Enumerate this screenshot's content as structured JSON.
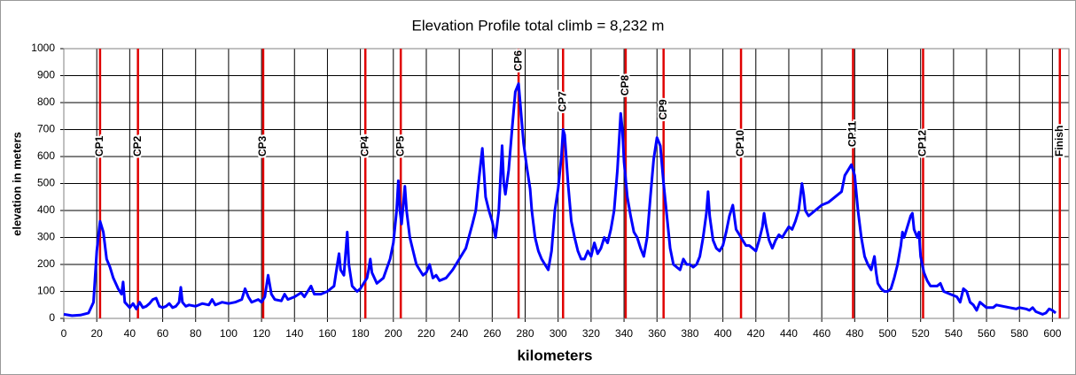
{
  "chart_data": {
    "type": "line",
    "title": "Elevation Profile   total climb = 8,232 m",
    "x_label": "kilometers",
    "y_label": "elevation in meters",
    "color": "#0000ff",
    "checkpoint_color": "#e00000",
    "xlim": [
      0,
      610
    ],
    "ylim": [
      0,
      1000
    ],
    "xticks": [
      0,
      20,
      40,
      60,
      80,
      100,
      120,
      140,
      160,
      180,
      200,
      220,
      240,
      260,
      280,
      300,
      320,
      340,
      360,
      380,
      400,
      420,
      440,
      460,
      480,
      500,
      520,
      540,
      560,
      580,
      600
    ],
    "yticks": [
      0,
      100,
      200,
      300,
      400,
      500,
      600,
      700,
      800,
      900,
      1000
    ],
    "grid": true,
    "checkpoints": [
      {
        "label": "CP1",
        "km": 22
      },
      {
        "label": "CP2",
        "km": 45
      },
      {
        "label": "CP3",
        "km": 121
      },
      {
        "label": "CP4",
        "km": 183
      },
      {
        "label": "CP5",
        "km": 204.5
      },
      {
        "label": "CP6",
        "km": 276
      },
      {
        "label": "CP7",
        "km": 303
      },
      {
        "label": "CP8",
        "km": 341
      },
      {
        "label": "CP9",
        "km": 364
      },
      {
        "label": "CP10",
        "km": 411
      },
      {
        "label": "CP11",
        "km": 479
      },
      {
        "label": "CP12",
        "km": 521.5
      },
      {
        "label": "Finish",
        "km": 604.5
      }
    ],
    "x": [
      0,
      5,
      10,
      15,
      18,
      20,
      22,
      24,
      26,
      28,
      30,
      33,
      35,
      36,
      37,
      40,
      42,
      44,
      46,
      48,
      50,
      52,
      54,
      56,
      58,
      60,
      62,
      64,
      66,
      68,
      70,
      71,
      72,
      74,
      76,
      80,
      84,
      88,
      90,
      92,
      96,
      100,
      104,
      108,
      110,
      112,
      114,
      118,
      120,
      122,
      124,
      126,
      128,
      132,
      134,
      136,
      140,
      144,
      146,
      150,
      152,
      156,
      160,
      164,
      166,
      167,
      168,
      170,
      172,
      173,
      175,
      178,
      180,
      182,
      184,
      185,
      186,
      187,
      190,
      194,
      198,
      200,
      202,
      203,
      204,
      205,
      206,
      207,
      208,
      210,
      212,
      214,
      216,
      218,
      220,
      222,
      224,
      226,
      228,
      232,
      236,
      240,
      244,
      248,
      250,
      252,
      254,
      256,
      258,
      260,
      262,
      264,
      266,
      267,
      268,
      270,
      272,
      274,
      276,
      277,
      279,
      281,
      283,
      284,
      286,
      288,
      290,
      292,
      294,
      296,
      298,
      300,
      302,
      303,
      304,
      306,
      308,
      310,
      312,
      314,
      316,
      318,
      320,
      322,
      324,
      326,
      328,
      330,
      332,
      334,
      336,
      338,
      339,
      340,
      342,
      344,
      346,
      348,
      350,
      352,
      354,
      356,
      358,
      360,
      362,
      364,
      366,
      368,
      370,
      372,
      374,
      376,
      378,
      380,
      382,
      384,
      386,
      388,
      390,
      391,
      392,
      394,
      396,
      398,
      400,
      402,
      404,
      406,
      408,
      410,
      412,
      414,
      416,
      418,
      420,
      422,
      424,
      425,
      426,
      428,
      430,
      432,
      434,
      436,
      438,
      440,
      442,
      444,
      446,
      448,
      449,
      450,
      452,
      456,
      460,
      464,
      468,
      472,
      474,
      476,
      478,
      480,
      482,
      484,
      486,
      488,
      490,
      492,
      493,
      494,
      496,
      498,
      500,
      502,
      504,
      506,
      508,
      509,
      510,
      512,
      514,
      515,
      516,
      518,
      519,
      520,
      522,
      524,
      526,
      530,
      532,
      534,
      538,
      542,
      544,
      546,
      548,
      550,
      552,
      554,
      556,
      560,
      564,
      566,
      570,
      574,
      578,
      580,
      584,
      586,
      588,
      590,
      592,
      594,
      596,
      598,
      600,
      602
    ],
    "values": [
      15,
      10,
      12,
      20,
      60,
      250,
      360,
      320,
      220,
      190,
      150,
      110,
      90,
      135,
      60,
      40,
      55,
      35,
      60,
      40,
      45,
      55,
      70,
      75,
      45,
      40,
      45,
      55,
      40,
      45,
      60,
      115,
      60,
      45,
      50,
      45,
      55,
      50,
      70,
      50,
      60,
      55,
      60,
      70,
      110,
      80,
      60,
      70,
      60,
      80,
      160,
      90,
      70,
      65,
      90,
      70,
      80,
      95,
      80,
      120,
      90,
      90,
      100,
      120,
      200,
      240,
      180,
      160,
      320,
      200,
      120,
      100,
      110,
      130,
      150,
      180,
      220,
      170,
      130,
      150,
      220,
      280,
      400,
      510,
      400,
      350,
      420,
      490,
      400,
      300,
      250,
      200,
      180,
      160,
      170,
      200,
      150,
      160,
      140,
      150,
      180,
      220,
      260,
      350,
      400,
      520,
      630,
      450,
      400,
      360,
      300,
      400,
      640,
      500,
      460,
      550,
      700,
      840,
      870,
      800,
      650,
      560,
      480,
      400,
      300,
      250,
      220,
      200,
      180,
      250,
      400,
      480,
      600,
      700,
      680,
      500,
      360,
      300,
      250,
      220,
      220,
      250,
      230,
      280,
      240,
      260,
      300,
      280,
      330,
      400,
      550,
      760,
      700,
      580,
      450,
      380,
      320,
      300,
      260,
      230,
      300,
      450,
      590,
      670,
      640,
      500,
      380,
      260,
      200,
      190,
      180,
      220,
      200,
      200,
      190,
      200,
      230,
      300,
      390,
      470,
      380,
      290,
      260,
      250,
      270,
      320,
      380,
      420,
      330,
      310,
      290,
      270,
      270,
      260,
      250,
      290,
      340,
      390,
      350,
      290,
      260,
      290,
      310,
      300,
      320,
      340,
      330,
      360,
      400,
      500,
      460,
      400,
      380,
      400,
      420,
      430,
      450,
      470,
      530,
      550,
      570,
      530,
      400,
      300,
      230,
      200,
      180,
      230,
      170,
      130,
      110,
      100,
      100,
      110,
      150,
      200,
      270,
      320,
      300,
      340,
      380,
      390,
      330,
      300,
      320,
      230,
      170,
      140,
      120,
      120,
      130,
      100,
      90,
      80,
      60,
      110,
      100,
      60,
      50,
      30,
      60,
      40,
      40,
      50,
      45,
      40,
      35,
      40,
      35,
      30,
      40,
      25,
      20,
      15,
      20,
      35,
      30,
      20
    ]
  }
}
